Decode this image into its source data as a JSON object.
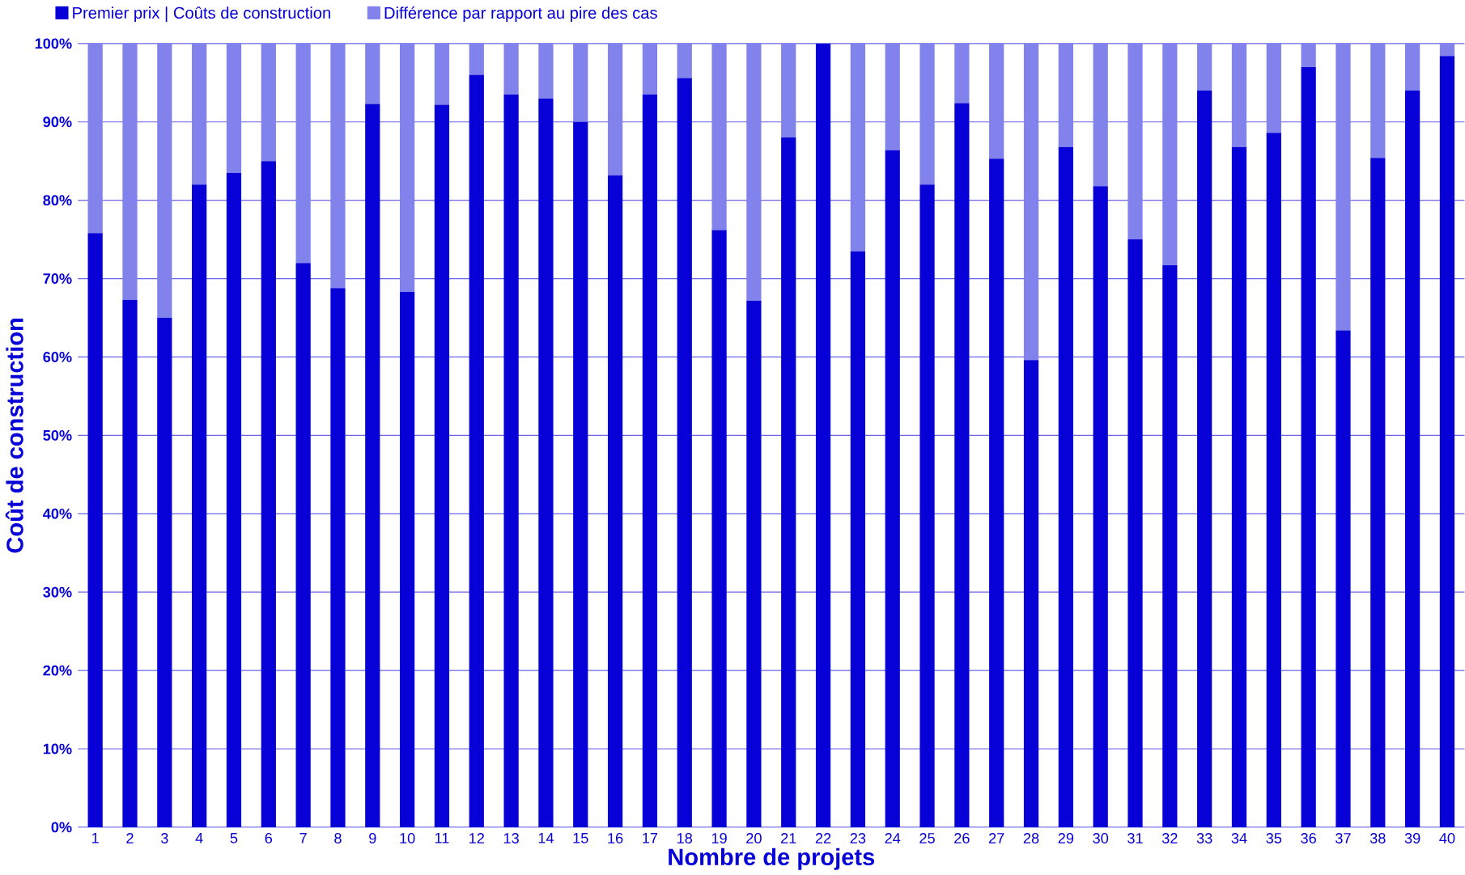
{
  "chart_data": {
    "type": "bar",
    "stacked": true,
    "xlabel": "Nombre de projets",
    "ylabel": "Coût de construction",
    "categories": [
      "1",
      "2",
      "3",
      "4",
      "5",
      "6",
      "7",
      "8",
      "9",
      "10",
      "11",
      "12",
      "13",
      "14",
      "15",
      "16",
      "17",
      "18",
      "19",
      "20",
      "21",
      "22",
      "23",
      "24",
      "25",
      "26",
      "27",
      "28",
      "29",
      "30",
      "31",
      "32",
      "33",
      "34",
      "35",
      "36",
      "37",
      "38",
      "39",
      "40"
    ],
    "series": [
      {
        "name": "Premier prix | Coûts de construction",
        "color": "#0700d7",
        "values": [
          75.8,
          67.3,
          65,
          82,
          83.5,
          85,
          72,
          68.8,
          92.3,
          68.3,
          92.2,
          96,
          93.5,
          93,
          90,
          83.2,
          93.5,
          95.6,
          76.2,
          67.2,
          88,
          100,
          73.5,
          86.4,
          82,
          92.4,
          85.3,
          59.6,
          86.8,
          81.8,
          75,
          71.7,
          94,
          86.8,
          88.6,
          97,
          63.4,
          85.4,
          94,
          98.4
        ]
      },
      {
        "name": "Différence par rapport au pire des cas",
        "color": "#8282ec",
        "values": [
          24.2,
          32.7,
          35,
          18,
          16.5,
          15,
          28,
          31.2,
          7.7,
          31.7,
          7.8,
          4,
          6.5,
          7,
          10,
          16.8,
          6.5,
          4.4,
          23.8,
          32.8,
          12,
          0,
          26.5,
          13.6,
          18,
          7.6,
          14.7,
          40.4,
          13.2,
          18.2,
          25,
          28.3,
          6,
          13.2,
          11.4,
          3,
          36.6,
          14.6,
          6,
          1.6
        ]
      }
    ],
    "ylim": [
      0,
      100
    ],
    "yticks": [
      {
        "value": 0,
        "label": "0%"
      },
      {
        "value": 10,
        "label": "10%"
      },
      {
        "value": 20,
        "label": "20%"
      },
      {
        "value": 30,
        "label": "30%"
      },
      {
        "value": 40,
        "label": "40%"
      },
      {
        "value": 50,
        "label": "50%"
      },
      {
        "value": 60,
        "label": "60%"
      },
      {
        "value": 70,
        "label": "70%"
      },
      {
        "value": 80,
        "label": "80%"
      },
      {
        "value": 90,
        "label": "90%"
      },
      {
        "value": 100,
        "label": "100%"
      }
    ],
    "grid": "y",
    "legend": "top left"
  }
}
